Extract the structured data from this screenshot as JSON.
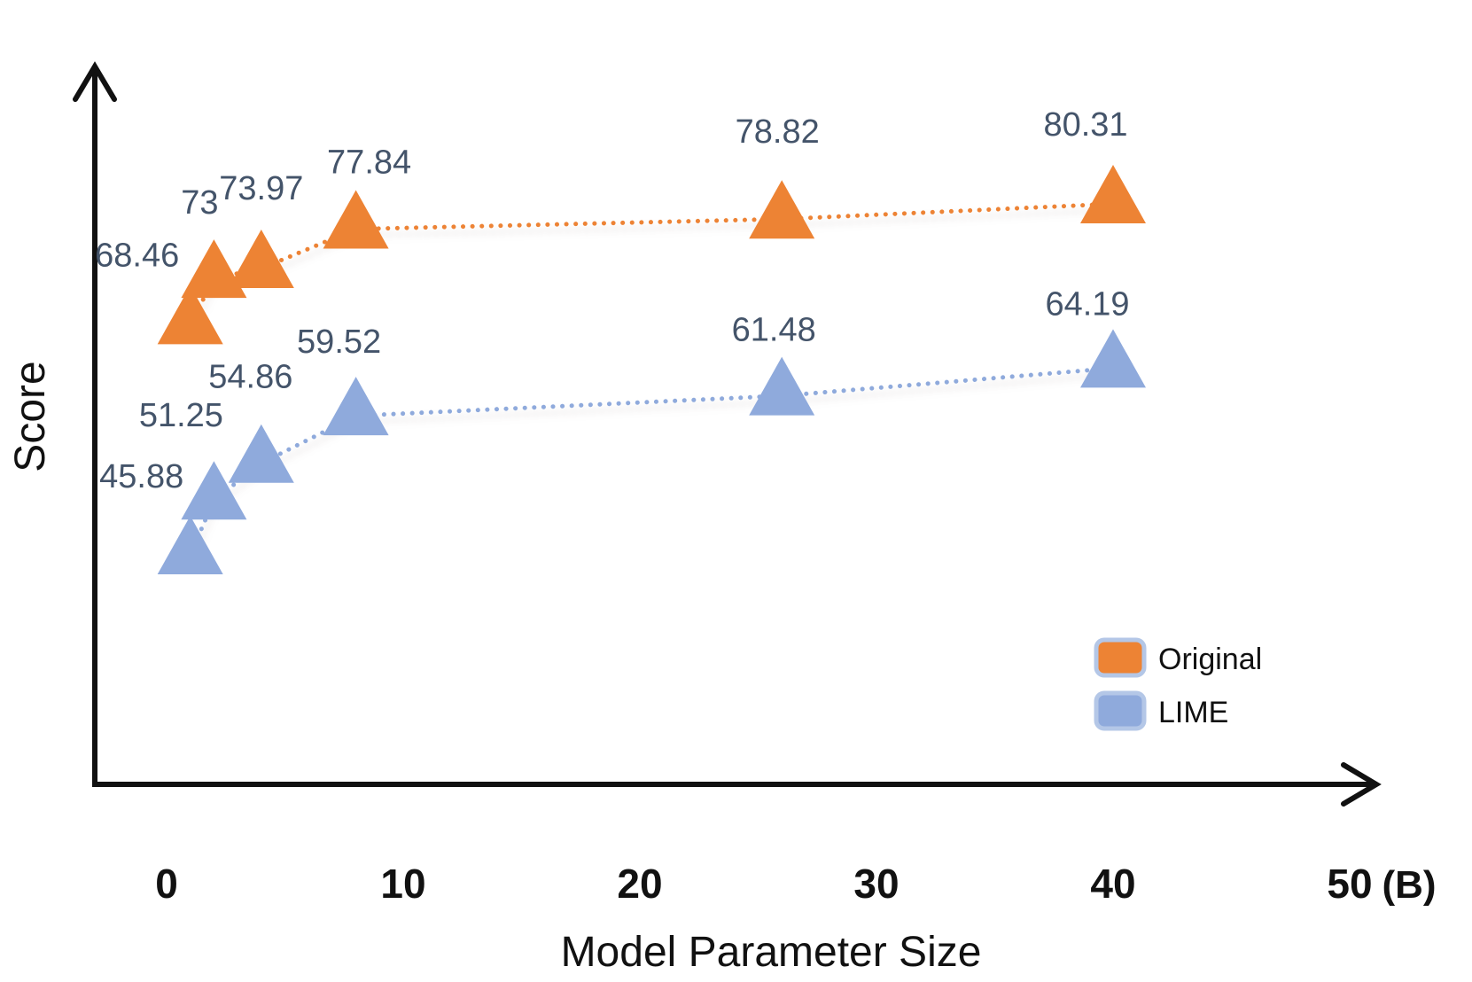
{
  "chart_data": {
    "type": "scatter",
    "title": "",
    "xlabel": "Model Parameter Size",
    "x_unit": "(B)",
    "ylabel": "Score",
    "xlim": [
      0,
      50
    ],
    "x_ticks": [
      "0",
      "10",
      "20",
      "30",
      "40",
      "50"
    ],
    "x_tick_values": [
      0,
      10,
      20,
      30,
      40,
      50
    ],
    "grid": false,
    "marker": "triangle-up",
    "line_style": "dotted",
    "value_label_color": "#44546A",
    "axis_color": "#111111",
    "series": [
      {
        "name": "Original",
        "color": "#ED8334",
        "x": [
          1,
          2,
          4,
          8,
          26,
          40
        ],
        "values": [
          68.46,
          73,
          73.97,
          77.84,
          78.82,
          80.31
        ],
        "labels": [
          "68.46",
          "73",
          "73.97",
          "77.84",
          "78.82",
          "80.31"
        ]
      },
      {
        "name": "LIME",
        "color": "#8FAADC",
        "x": [
          1,
          2,
          4,
          8,
          26,
          40
        ],
        "values": [
          45.88,
          51.25,
          54.86,
          59.52,
          61.48,
          64.19
        ],
        "labels": [
          "45.88",
          "51.25",
          "54.86",
          "59.52",
          "61.48",
          "64.19"
        ]
      }
    ],
    "legend": {
      "position": "lower-right",
      "swatch_border_color": "#B4C7E7",
      "entries": [
        {
          "label": "Original",
          "color": "#ED8334"
        },
        {
          "label": "LIME",
          "color": "#8FAADC"
        }
      ]
    }
  }
}
